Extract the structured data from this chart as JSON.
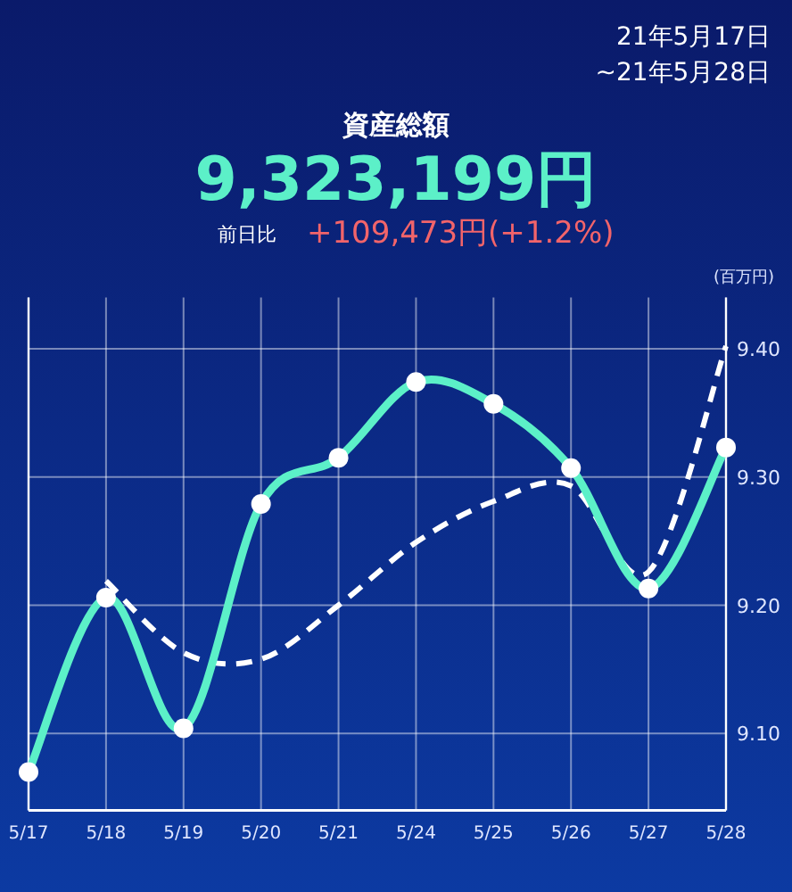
{
  "chart_data": {
    "type": "line",
    "title": "資産総額",
    "subtitle": "9,323,199円",
    "ylabel": "(百万円)",
    "annotations": [
      "21年5月17日",
      "~21年5月28日",
      "前日比",
      "+109,473円(+1.2%)"
    ],
    "categories": [
      "5/17",
      "5/18",
      "5/19",
      "5/20",
      "5/21",
      "5/24",
      "5/25",
      "5/26",
      "5/27",
      "5/28"
    ],
    "series": [
      {
        "color": "#ffffff",
        "line_style": "dashed",
        "marker": "none",
        "values": [
          null,
          9.219,
          9.163,
          9.158,
          9.2,
          9.249,
          9.281,
          9.293,
          9.226,
          9.402
        ]
      },
      {
        "color": "#5cf0c8",
        "line_style": "solid",
        "marker": "circle",
        "values": [
          9.07,
          9.206,
          9.104,
          9.279,
          9.315,
          9.374,
          9.357,
          9.307,
          9.213,
          9.323
        ]
      }
    ],
    "ylim": [
      9.04,
      9.44
    ],
    "yticks": [
      {
        "value": 9.1,
        "label": "9.10"
      },
      {
        "value": 9.2,
        "label": "9.20"
      },
      {
        "value": 9.3,
        "label": "9.30"
      },
      {
        "value": 9.4,
        "label": "9.40"
      }
    ],
    "grid": true
  }
}
